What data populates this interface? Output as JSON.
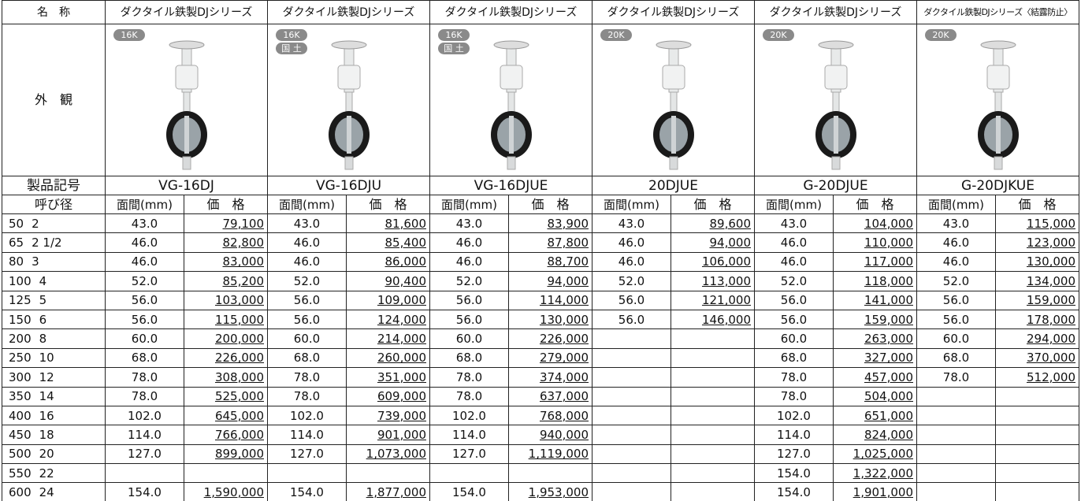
{
  "header": {
    "name_label": "名　称",
    "appearance_label": "外　観",
    "model_label": "製品記号",
    "size_label": "呼び径",
    "face_label": "面間(mm)",
    "price_label": "価　格"
  },
  "products": [
    {
      "series": "ダクタイル鉄製DJシリーズ",
      "badges": [
        "16K"
      ],
      "model": "VG-16DJ"
    },
    {
      "series": "ダクタイル鉄製DJシリーズ",
      "badges": [
        "16K",
        "国 土"
      ],
      "model": "VG-16DJU"
    },
    {
      "series": "ダクタイル鉄製DJシリーズ",
      "badges": [
        "16K",
        "国 土"
      ],
      "model": "VG-16DJUE"
    },
    {
      "series": "ダクタイル鉄製DJシリーズ",
      "badges": [
        "20K"
      ],
      "model": "20DJUE"
    },
    {
      "series": "ダクタイル鉄製DJシリーズ",
      "badges": [
        "20K"
      ],
      "model": "G-20DJUE"
    },
    {
      "series": "ダクタイル鉄製DJシリーズ〈結露防止〉",
      "badges": [
        "20K"
      ],
      "model": "G-20DJKUE"
    }
  ],
  "rows": [
    {
      "mm": "50",
      "inch": "2",
      "cells": [
        [
          "43.0",
          "79,100"
        ],
        [
          "43.0",
          "81,600"
        ],
        [
          "43.0",
          "83,900"
        ],
        [
          "43.0",
          "89,600"
        ],
        [
          "43.0",
          "104,000"
        ],
        [
          "43.0",
          "115,000"
        ]
      ]
    },
    {
      "mm": "65",
      "inch": "2 1/2",
      "cells": [
        [
          "46.0",
          "82,800"
        ],
        [
          "46.0",
          "85,400"
        ],
        [
          "46.0",
          "87,800"
        ],
        [
          "46.0",
          "94,000"
        ],
        [
          "46.0",
          "110,000"
        ],
        [
          "46.0",
          "123,000"
        ]
      ]
    },
    {
      "mm": "80",
      "inch": "3",
      "cells": [
        [
          "46.0",
          "83,000"
        ],
        [
          "46.0",
          "86,000"
        ],
        [
          "46.0",
          "88,700"
        ],
        [
          "46.0",
          "106,000"
        ],
        [
          "46.0",
          "117,000"
        ],
        [
          "46.0",
          "130,000"
        ]
      ]
    },
    {
      "mm": "100",
      "inch": "4",
      "cells": [
        [
          "52.0",
          "85,200"
        ],
        [
          "52.0",
          "90,400"
        ],
        [
          "52.0",
          "94,000"
        ],
        [
          "52.0",
          "113,000"
        ],
        [
          "52.0",
          "118,000"
        ],
        [
          "52.0",
          "134,000"
        ]
      ]
    },
    {
      "mm": "125",
      "inch": "5",
      "cells": [
        [
          "56.0",
          "103,000"
        ],
        [
          "56.0",
          "109,000"
        ],
        [
          "56.0",
          "114,000"
        ],
        [
          "56.0",
          "121,000"
        ],
        [
          "56.0",
          "141,000"
        ],
        [
          "56.0",
          "159,000"
        ]
      ]
    },
    {
      "mm": "150",
      "inch": "6",
      "cells": [
        [
          "56.0",
          "115,000"
        ],
        [
          "56.0",
          "124,000"
        ],
        [
          "56.0",
          "130,000"
        ],
        [
          "56.0",
          "146,000"
        ],
        [
          "56.0",
          "159,000"
        ],
        [
          "56.0",
          "178,000"
        ]
      ]
    },
    {
      "mm": "200",
      "inch": "8",
      "cells": [
        [
          "60.0",
          "200,000"
        ],
        [
          "60.0",
          "214,000"
        ],
        [
          "60.0",
          "226,000"
        ],
        null,
        [
          "60.0",
          "263,000"
        ],
        [
          "60.0",
          "294,000"
        ]
      ]
    },
    {
      "mm": "250",
      "inch": "10",
      "cells": [
        [
          "68.0",
          "226,000"
        ],
        [
          "68.0",
          "260,000"
        ],
        [
          "68.0",
          "279,000"
        ],
        null,
        [
          "68.0",
          "327,000"
        ],
        [
          "68.0",
          "370,000"
        ]
      ]
    },
    {
      "mm": "300",
      "inch": "12",
      "cells": [
        [
          "78.0",
          "308,000"
        ],
        [
          "78.0",
          "351,000"
        ],
        [
          "78.0",
          "374,000"
        ],
        null,
        [
          "78.0",
          "457,000"
        ],
        [
          "78.0",
          "512,000"
        ]
      ]
    },
    {
      "mm": "350",
      "inch": "14",
      "cells": [
        [
          "78.0",
          "525,000"
        ],
        [
          "78.0",
          "609,000"
        ],
        [
          "78.0",
          "637,000"
        ],
        null,
        [
          "78.0",
          "504,000"
        ],
        null
      ]
    },
    {
      "mm": "400",
      "inch": "16",
      "cells": [
        [
          "102.0",
          "645,000"
        ],
        [
          "102.0",
          "739,000"
        ],
        [
          "102.0",
          "768,000"
        ],
        null,
        [
          "102.0",
          "651,000"
        ],
        null
      ]
    },
    {
      "mm": "450",
      "inch": "18",
      "cells": [
        [
          "114.0",
          "766,000"
        ],
        [
          "114.0",
          "901,000"
        ],
        [
          "114.0",
          "940,000"
        ],
        null,
        [
          "114.0",
          "824,000"
        ],
        null
      ]
    },
    {
      "mm": "500",
      "inch": "20",
      "cells": [
        [
          "127.0",
          "899,000"
        ],
        [
          "127.0",
          "1,073,000"
        ],
        [
          "127.0",
          "1,119,000"
        ],
        null,
        [
          "127.0",
          "1,025,000"
        ],
        null
      ]
    },
    {
      "mm": "550",
      "inch": "22",
      "cells": [
        null,
        null,
        null,
        null,
        [
          "154.0",
          "1,322,000"
        ],
        null
      ]
    },
    {
      "mm": "600",
      "inch": "24",
      "cells": [
        [
          "154.0",
          "1,590,000"
        ],
        [
          "154.0",
          "1,877,000"
        ],
        [
          "154.0",
          "1,953,000"
        ],
        null,
        [
          "154.0",
          "1,901,000"
        ],
        null
      ]
    }
  ]
}
